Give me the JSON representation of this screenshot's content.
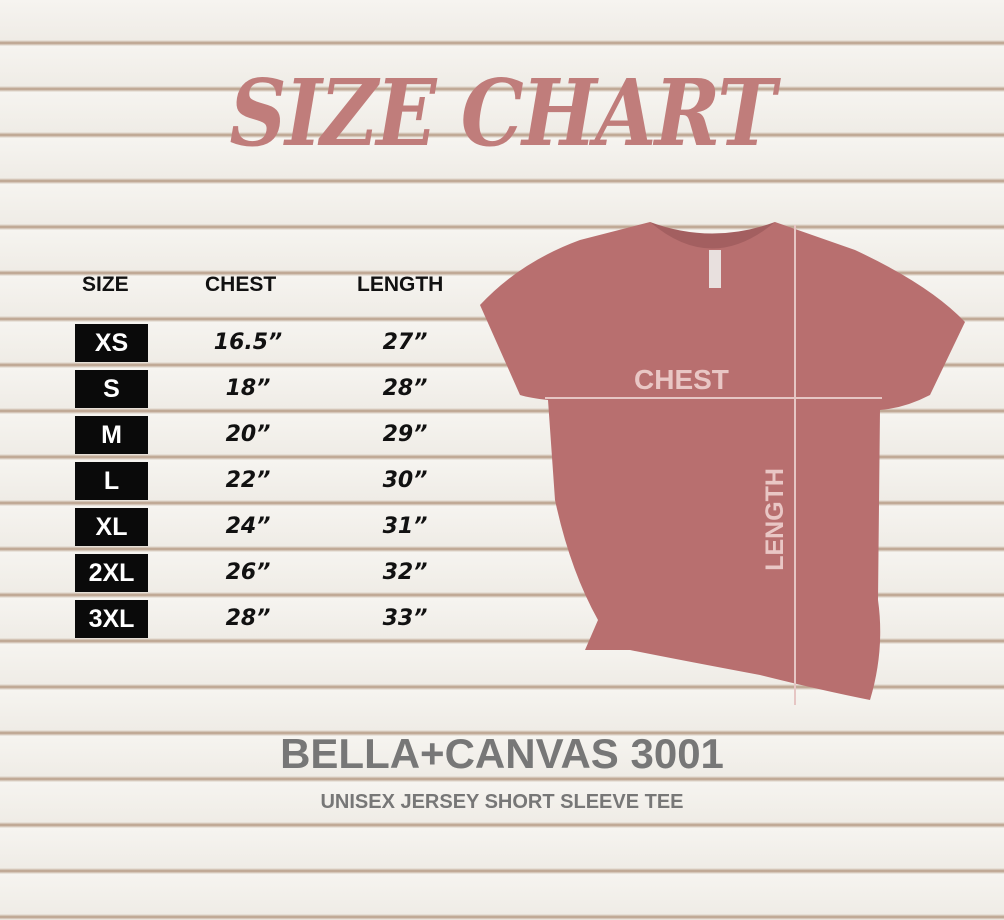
{
  "title": "SIZE CHART",
  "table": {
    "headers": [
      "SIZE",
      "CHEST",
      "LENGTH"
    ],
    "rows": [
      {
        "size": "XS",
        "chest": "16.5”",
        "length": "27”"
      },
      {
        "size": "S",
        "chest": "18”",
        "length": "28”"
      },
      {
        "size": "M",
        "chest": "20”",
        "length": "29”"
      },
      {
        "size": "L",
        "chest": "22”",
        "length": "30”"
      },
      {
        "size": "XL",
        "chest": "24”",
        "length": "31”"
      },
      {
        "size": "2XL",
        "chest": "26”",
        "length": "32”"
      },
      {
        "size": "3XL",
        "chest": "28”",
        "length": "33”"
      }
    ]
  },
  "shirt": {
    "chest_label": "CHEST",
    "length_label": "LENGTH",
    "color": "#b86f6f"
  },
  "brand": "BELLA+CANVAS 3001",
  "subtitle": "UNISEX JERSEY SHORT SLEEVE TEE",
  "colors": {
    "title": "#c07d7b",
    "badge": "#0a0a0a",
    "brand": "#777777"
  }
}
